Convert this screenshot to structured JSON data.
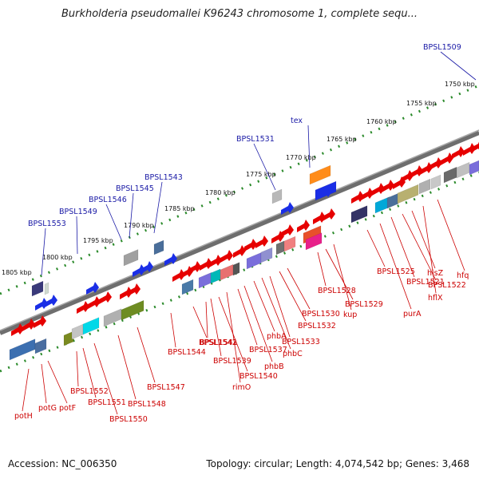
{
  "title": "Burkholderia pseudomallei K96243 chromosome 1, complete sequ...",
  "footer": {
    "accession": "Accession: NC_006350",
    "summary": "Topology: circular; Length: 4,074,542 bp; Genes: 3,468"
  },
  "ruler_ticks": [
    "1805 kbp",
    "1800 kbp",
    "1795 kbp",
    "1790 kbp",
    "1785 kbp",
    "1780 kbp",
    "1775 kbp",
    "1770 kbp",
    "1765 kbp",
    "1760 kbp",
    "1755 kbp",
    "1750 kbp"
  ],
  "upper_genes": [
    "BPSL1553",
    "BPSL1549",
    "BPSL1546",
    "BPSL1545",
    "BPSL1543",
    "BPSL1531",
    "tex",
    "BPSL1509"
  ],
  "lower_genes": [
    "potH",
    "potG",
    "potF",
    "BPSL1552",
    "BPSL1551",
    "BPSL1550",
    "BPSL1548",
    "BPSL1547",
    "BPSL1544",
    "BPSL1542",
    "BPSL1541",
    "BPSL1539",
    "BPSL1540",
    "rimO",
    "BPSL1537",
    "phbB",
    "phbA",
    "phbC",
    "BPSL1533",
    "BPSL1532",
    "BPSL1530",
    "BPSL1528",
    "BPSL1529",
    "kup",
    "BPSL1525",
    "purA",
    "BPSL1521",
    "BPSL1522",
    "hisZ",
    "hflX",
    "hfq"
  ],
  "colors": {
    "upper_gene_label": "#1a1aa6",
    "lower_gene_label": "#cc0000",
    "forward_strand_arrow": "#1a2ee6",
    "reverse_strand_arrow": "#e60000",
    "axis": "#6e6e6e",
    "ruler_dots": "#2a8a2a"
  }
}
